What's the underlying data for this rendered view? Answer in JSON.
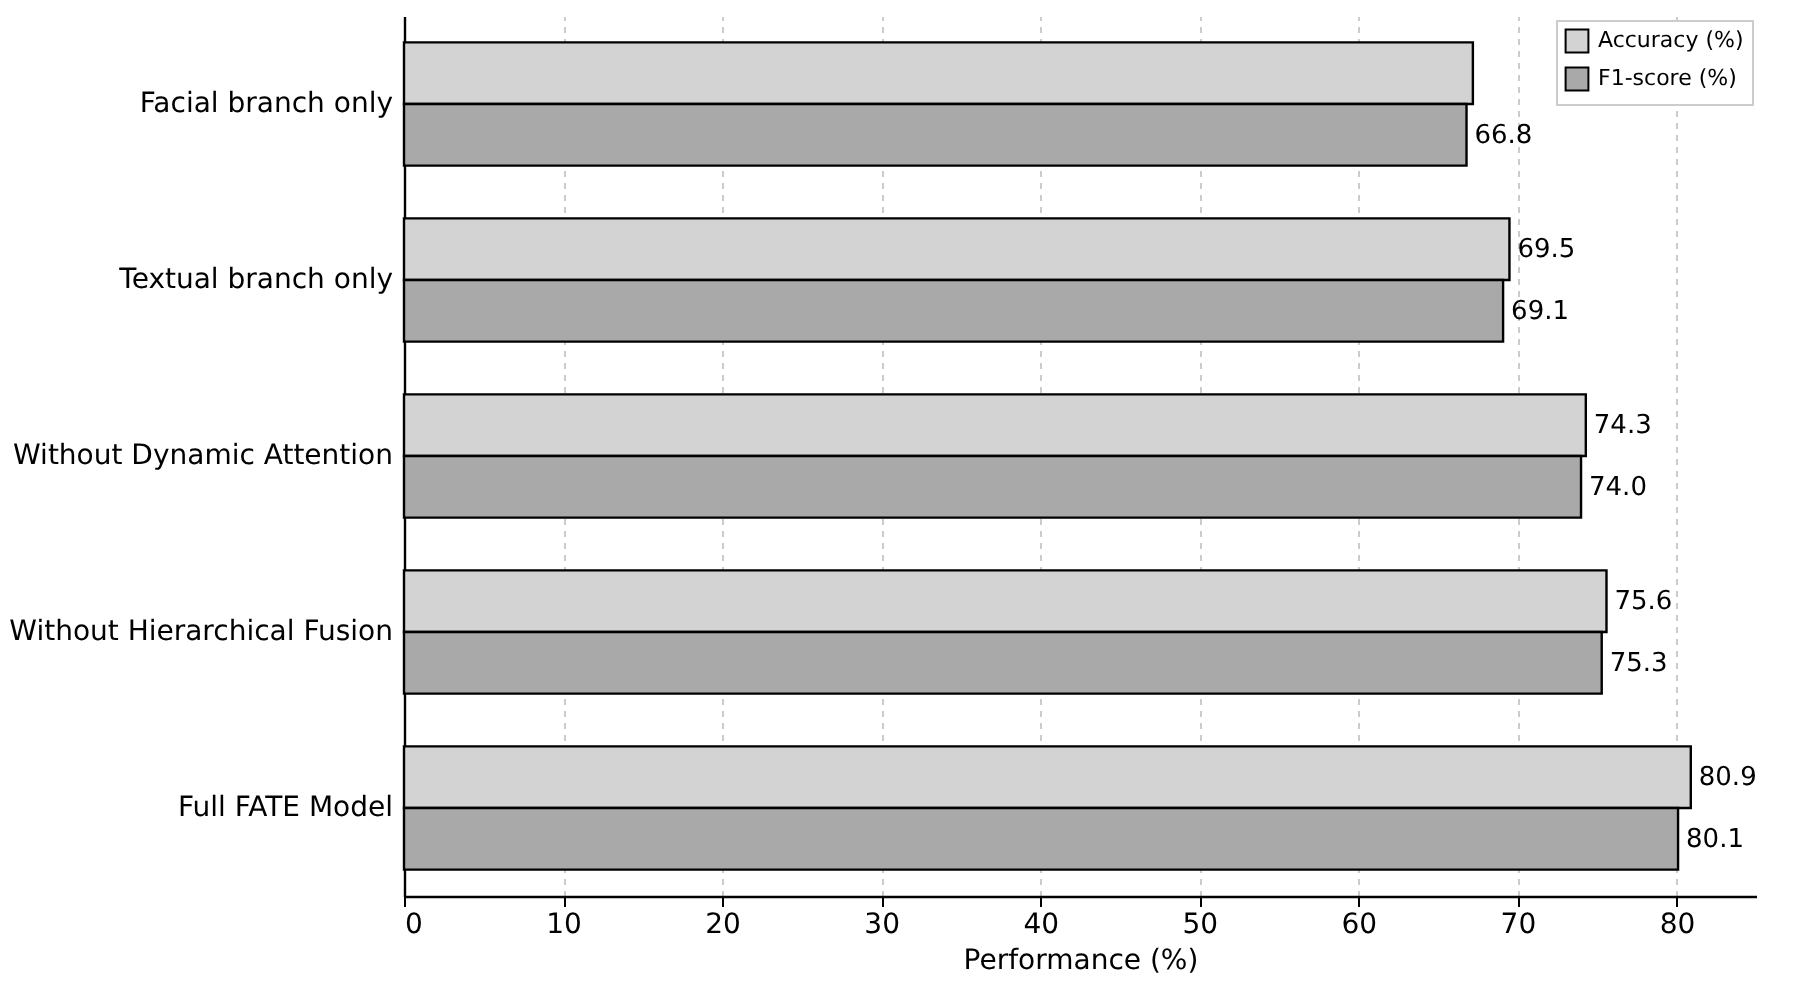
{
  "chart_data": {
    "type": "bar",
    "orientation": "horizontal",
    "xlabel": "Performance (%)",
    "categories": [
      "Facial branch only",
      "Textual branch only",
      "Without Dynamic Attention",
      "Without Hierarchical Fusion",
      "Full FATE Model"
    ],
    "series": [
      {
        "name": "Accuracy (%)",
        "color": "#d3d3d3",
        "values": [
          67.2,
          69.5,
          74.3,
          75.6,
          80.9
        ],
        "value_labels": [
          null,
          "69.5",
          "74.3",
          "75.6",
          "80.9"
        ]
      },
      {
        "name": "F1-score (%)",
        "color": "#a9a9a9",
        "values": [
          66.8,
          69.1,
          74.0,
          75.3,
          80.1
        ],
        "value_labels": [
          "66.8",
          "69.1",
          "74.0",
          "75.3",
          "80.1"
        ]
      }
    ],
    "xlim": [
      0,
      85
    ],
    "xticks": [
      0,
      10,
      20,
      30,
      40,
      50,
      60,
      70,
      80
    ],
    "grid": "x",
    "legend": "top right"
  }
}
